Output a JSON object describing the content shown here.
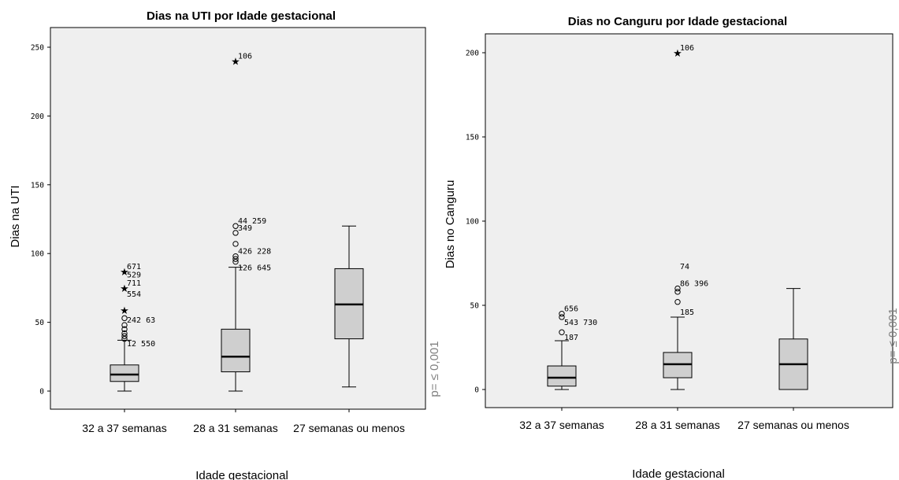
{
  "chart_data": [
    {
      "type": "boxplot",
      "title": "Dias na UTI por Idade gestacional",
      "xlabel": "Idade gestacional",
      "ylabel": "Dias na UTI",
      "ylim": [
        0,
        250
      ],
      "yticks": [
        0,
        50,
        100,
        150,
        200,
        250
      ],
      "categories": [
        "32 a 37 semanas",
        "28 a 31 semanas",
        "27 semanas ou menos"
      ],
      "boxes": [
        {
          "min": 0,
          "q1": 7,
          "median": 12,
          "q3": 19,
          "max": 37
        },
        {
          "min": 0,
          "q1": 14,
          "median": 25,
          "q3": 45,
          "max": 90
        },
        {
          "min": 3,
          "q1": 38,
          "median": 63,
          "q3": 89,
          "max": 120
        }
      ],
      "outliers": [
        {
          "cat": 0,
          "y": 87,
          "marker": "star",
          "label": "671"
        },
        {
          "cat": 0,
          "y": 81,
          "marker": "none",
          "label": "529"
        },
        {
          "cat": 0,
          "y": 75,
          "marker": "star",
          "label": "711"
        },
        {
          "cat": 0,
          "y": 67,
          "marker": "none",
          "label": "554"
        },
        {
          "cat": 0,
          "y": 59,
          "marker": "star",
          "label": ""
        },
        {
          "cat": 0,
          "y": 53,
          "marker": "circle",
          "label": ""
        },
        {
          "cat": 0,
          "y": 48,
          "marker": "circle",
          "label": "242 63"
        },
        {
          "cat": 0,
          "y": 45,
          "marker": "circle",
          "label": ""
        },
        {
          "cat": 0,
          "y": 42,
          "marker": "circle",
          "label": ""
        },
        {
          "cat": 0,
          "y": 40,
          "marker": "circle",
          "label": ""
        },
        {
          "cat": 0,
          "y": 38,
          "marker": "circle",
          "label": ""
        },
        {
          "cat": 0,
          "y": 31,
          "marker": "none",
          "label": "12 550"
        },
        {
          "cat": 1,
          "y": 240,
          "marker": "star",
          "label": "106"
        },
        {
          "cat": 1,
          "y": 120,
          "marker": "circle",
          "label": "44 259"
        },
        {
          "cat": 1,
          "y": 115,
          "marker": "circle",
          "label": "349"
        },
        {
          "cat": 1,
          "y": 107,
          "marker": "circle",
          "label": ""
        },
        {
          "cat": 1,
          "y": 98,
          "marker": "circle",
          "label": "426 228"
        },
        {
          "cat": 1,
          "y": 96,
          "marker": "circle",
          "label": ""
        },
        {
          "cat": 1,
          "y": 94,
          "marker": "circle",
          "label": ""
        },
        {
          "cat": 1,
          "y": 86,
          "marker": "none",
          "label": "126 645"
        }
      ],
      "annotation": "p= ≤ 0,001"
    },
    {
      "type": "boxplot",
      "title": "Dias no Canguru por Idade gestacional",
      "xlabel": "Idade gestacional",
      "ylabel": "Dias no Canguru",
      "ylim": [
        0,
        200
      ],
      "yticks": [
        0,
        50,
        100,
        150,
        200
      ],
      "categories": [
        "32 a 37 semanas",
        "28 a 31 semanas",
        "27 semanas ou menos"
      ],
      "boxes": [
        {
          "min": 0,
          "q1": 2,
          "median": 7,
          "q3": 14,
          "max": 29
        },
        {
          "min": 0,
          "q1": 7,
          "median": 15,
          "q3": 22,
          "max": 43
        },
        {
          "min": 0,
          "q1": 0,
          "median": 15,
          "q3": 30,
          "max": 60
        }
      ],
      "outliers": [
        {
          "cat": 0,
          "y": 45,
          "marker": "circle",
          "label": "656"
        },
        {
          "cat": 0,
          "y": 43,
          "marker": "circle",
          "label": ""
        },
        {
          "cat": 0,
          "y": 37,
          "marker": "none",
          "label": "543 730"
        },
        {
          "cat": 0,
          "y": 34,
          "marker": "circle",
          "label": ""
        },
        {
          "cat": 0,
          "y": 28,
          "marker": "none",
          "label": "187"
        },
        {
          "cat": 1,
          "y": 200,
          "marker": "star",
          "label": "106"
        },
        {
          "cat": 1,
          "y": 70,
          "marker": "none",
          "label": "74"
        },
        {
          "cat": 1,
          "y": 60,
          "marker": "circle",
          "label": "86 396"
        },
        {
          "cat": 1,
          "y": 58,
          "marker": "circle",
          "label": ""
        },
        {
          "cat": 1,
          "y": 52,
          "marker": "circle",
          "label": ""
        },
        {
          "cat": 1,
          "y": 43,
          "marker": "none",
          "label": "185"
        }
      ],
      "annotation": "p= ≤ 0,001"
    }
  ]
}
